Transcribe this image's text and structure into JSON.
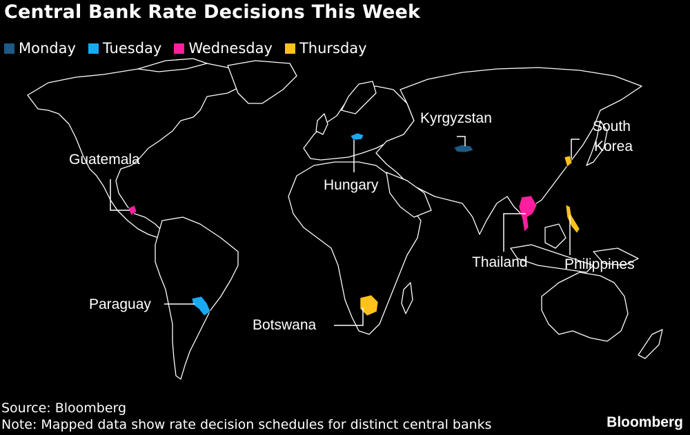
{
  "title": "Central Bank Rate Decisions This Week",
  "legend": [
    {
      "label": "Monday",
      "color": "#1d5a85"
    },
    {
      "label": "Tuesday",
      "color": "#19a9f0"
    },
    {
      "label": "Wednesday",
      "color": "#ff1f9e"
    },
    {
      "label": "Thursday",
      "color": "#ffc21c"
    }
  ],
  "countries": [
    {
      "name": "Kyrgyzstan",
      "day": "Monday"
    },
    {
      "name": "Hungary",
      "day": "Tuesday"
    },
    {
      "name": "Paraguay",
      "day": "Tuesday"
    },
    {
      "name": "Guatemala",
      "day": "Wednesday"
    },
    {
      "name": "Thailand",
      "day": "Wednesday"
    },
    {
      "name": "Botswana",
      "day": "Thursday"
    },
    {
      "name": "South Korea",
      "day": "Thursday"
    },
    {
      "name": "Philippines",
      "day": "Thursday"
    }
  ],
  "labels": {
    "kyrgyzstan": "Kyrgyzstan",
    "hungary": "Hungary",
    "guatemala": "Guatemala",
    "paraguay": "Paraguay",
    "botswana": "Botswana",
    "thailand": "Thailand",
    "south_korea_1": "South",
    "south_korea_2": "Korea",
    "philippines": "Philippines"
  },
  "source": "Source: Bloomberg",
  "note": "Note: Mapped data show rate decision schedules for distinct central banks",
  "brand": "Bloomberg"
}
